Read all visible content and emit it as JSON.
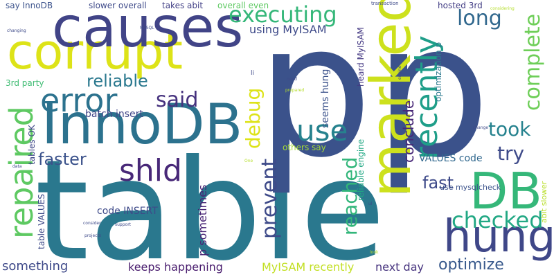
{
  "words": [
    {
      "text": "table",
      "color": "#2a788e",
      "vertical": false
    },
    {
      "text": "p",
      "color": "#3b528b",
      "vertical": false
    },
    {
      "text": "p",
      "color": "#3b528b",
      "vertical": false
    },
    {
      "text": "corrupt",
      "color": "#dde318",
      "vertical": false
    },
    {
      "text": "causes",
      "color": "#414487",
      "vertical": false
    },
    {
      "text": "InnoDB",
      "color": "#2c728e",
      "vertical": false
    },
    {
      "text": "marked",
      "color": "#cde11d",
      "vertical": true
    },
    {
      "text": "DB",
      "color": "#35b779",
      "vertical": false
    },
    {
      "text": "hung",
      "color": "#3f4788",
      "vertical": false
    },
    {
      "text": "repaired",
      "color": "#5ec962",
      "vertical": true
    },
    {
      "text": "recently",
      "color": "#1f9e89",
      "vertical": true
    },
    {
      "text": "error",
      "color": "#2c728e",
      "vertical": false
    },
    {
      "text": "shld",
      "color": "#482878",
      "vertical": false
    },
    {
      "text": "use",
      "color": "#26828e",
      "vertical": false
    },
    {
      "text": "executing",
      "color": "#35b779",
      "vertical": false
    },
    {
      "text": "checked",
      "color": "#22a884",
      "vertical": false
    },
    {
      "text": "prevent",
      "color": "#3e4a89",
      "vertical": true
    },
    {
      "text": "reached",
      "color": "#32b67a",
      "vertical": true
    },
    {
      "text": "complete",
      "color": "#6ece58",
      "vertical": true
    },
    {
      "text": "debug",
      "color": "#dde318",
      "vertical": true
    },
    {
      "text": "long",
      "color": "#31688e",
      "vertical": false
    },
    {
      "text": "said",
      "color": "#46327e",
      "vertical": false
    },
    {
      "text": "took",
      "color": "#26828e",
      "vertical": false
    },
    {
      "text": "try",
      "color": "#3e4a89",
      "vertical": false
    },
    {
      "text": "faster",
      "color": "#3b528b",
      "vertical": false
    },
    {
      "text": "fast",
      "color": "#3e4a89",
      "vertical": false
    },
    {
      "text": "reliable",
      "color": "#2a788e",
      "vertical": false
    },
    {
      "text": "conclude",
      "color": "#482878",
      "vertical": true
    },
    {
      "text": "optimize",
      "color": "#38598c",
      "vertical": false
    },
    {
      "text": "something",
      "color": "#3e4989",
      "vertical": false
    },
    {
      "text": "keeps happening",
      "color": "#481b6d",
      "vertical": false
    },
    {
      "text": "MyISAM recently",
      "color": "#c2df23",
      "vertical": false
    },
    {
      "text": "next day",
      "color": "#46337e",
      "vertical": false
    },
    {
      "text": "using MyISAM",
      "color": "#3e4a89",
      "vertical": false
    },
    {
      "text": "batch insert",
      "color": "#404688",
      "vertical": false
    },
    {
      "text": "code INSERT",
      "color": "#3e4a89",
      "vertical": false
    },
    {
      "text": "p sometimes",
      "color": "#482475",
      "vertical": true
    },
    {
      "text": "VALUES code",
      "color": "#31688e",
      "vertical": false
    },
    {
      "text": "seems hung",
      "color": "#3b528b",
      "vertical": true
    },
    {
      "text": "say InnoDB",
      "color": "#3b528b",
      "vertical": false
    },
    {
      "text": "slower overall",
      "color": "#3e4a89",
      "vertical": false
    },
    {
      "text": "takes abit",
      "color": "#424086",
      "vertical": false
    },
    {
      "text": "overall even",
      "color": "#5ec962",
      "vertical": false
    },
    {
      "text": "hosted 3rd",
      "color": "#433e85",
      "vertical": false
    },
    {
      "text": "heard MyISAM",
      "color": "#443983",
      "vertical": true
    },
    {
      "text": "optimization p",
      "color": "#2a788e",
      "vertical": true
    },
    {
      "text": "3rd party",
      "color": "#3fbc73",
      "vertical": false
    },
    {
      "text": "table VALUES",
      "color": "#3e4a89",
      "vertical": true
    },
    {
      "text": "tables OK",
      "color": "#3f4788",
      "vertical": true
    },
    {
      "text": "others say",
      "color": "#a5db36",
      "vertical": false
    },
    {
      "text": "reliable engine",
      "color": "#22a884",
      "vertical": true
    },
    {
      "text": "use mysqlcheck",
      "color": "#3b528b",
      "vertical": false
    },
    {
      "text": "abit slower",
      "color": "#b8de29",
      "vertical": true
    },
    {
      "text": "li",
      "color": "#3e4a89",
      "vertical": false
    },
    {
      "text": "transaction",
      "color": "#3e4a89",
      "vertical": false
    },
    {
      "text": "considering",
      "color": "#b5de2b",
      "vertical": false
    },
    {
      "text": "MySQL",
      "color": "#3e4a89",
      "vertical": false
    },
    {
      "text": "changing",
      "color": "#3e4a89",
      "vertical": false
    },
    {
      "text": "need",
      "color": "#3e4a89",
      "vertical": false
    },
    {
      "text": "prepared",
      "color": "#b5de2b",
      "vertical": false
    },
    {
      "text": "engine",
      "color": "#3e4a89",
      "vertical": true
    },
    {
      "text": "change",
      "color": "#3e4a89",
      "vertical": false
    },
    {
      "text": "data",
      "color": "#3e4a89",
      "vertical": false
    },
    {
      "text": "One",
      "color": "#b5de2b",
      "vertical": false
    },
    {
      "text": "consider",
      "color": "#3e4a89",
      "vertical": false
    },
    {
      "text": "support",
      "color": "#3e4a89",
      "vertical": false
    },
    {
      "text": "projects",
      "color": "#3e4a89",
      "vertical": false
    },
    {
      "text": "ul",
      "color": "#3e4a89",
      "vertical": false
    },
    {
      "text": "look",
      "color": "#b5de2b",
      "vertical": false
    }
  ]
}
